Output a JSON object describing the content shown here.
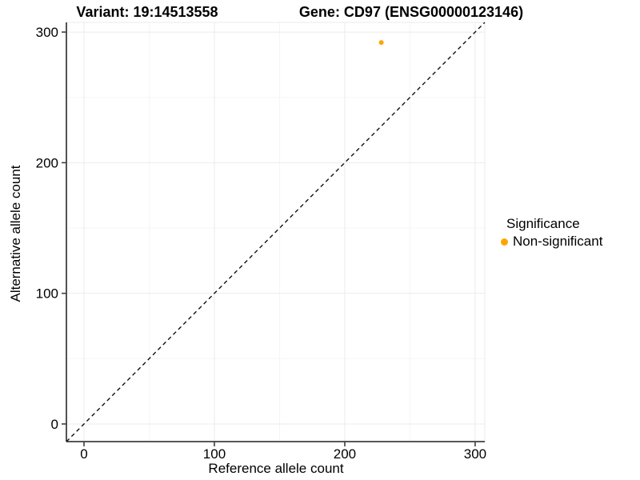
{
  "chart_data": {
    "type": "scatter",
    "titles": {
      "left": "Variant: 19:14513558",
      "right": "Gene: CD97 (ENSG00000123146)"
    },
    "xlabel": "Reference allele count",
    "ylabel": "Alternative allele count",
    "x_ticks": [
      0,
      100,
      200,
      300
    ],
    "y_ticks": [
      0,
      100,
      200,
      300
    ],
    "x_minor_ticks": [
      50,
      150,
      250
    ],
    "y_minor_ticks": [
      50,
      150,
      250
    ],
    "xlim": [
      -13.5,
      307.4
    ],
    "ylim": [
      -13.5,
      307.4
    ],
    "grid": {
      "show": true,
      "major_color": "#ebebeb",
      "minor_color": "#f5f5f5"
    },
    "axis_color": "#3f3f3f",
    "text_color": "#000000",
    "reference_line": {
      "type": "identity",
      "slope": 1,
      "intercept": 0,
      "style": "dashed",
      "color": "#111111"
    },
    "series": [
      {
        "name": "Non-significant",
        "color": "#FFA500",
        "points": [
          {
            "x": 228,
            "y": 292
          }
        ]
      }
    ],
    "legend": {
      "title": "Significance",
      "position": "right",
      "items": [
        {
          "label": "Non-significant",
          "color": "#FFA500"
        }
      ]
    }
  }
}
